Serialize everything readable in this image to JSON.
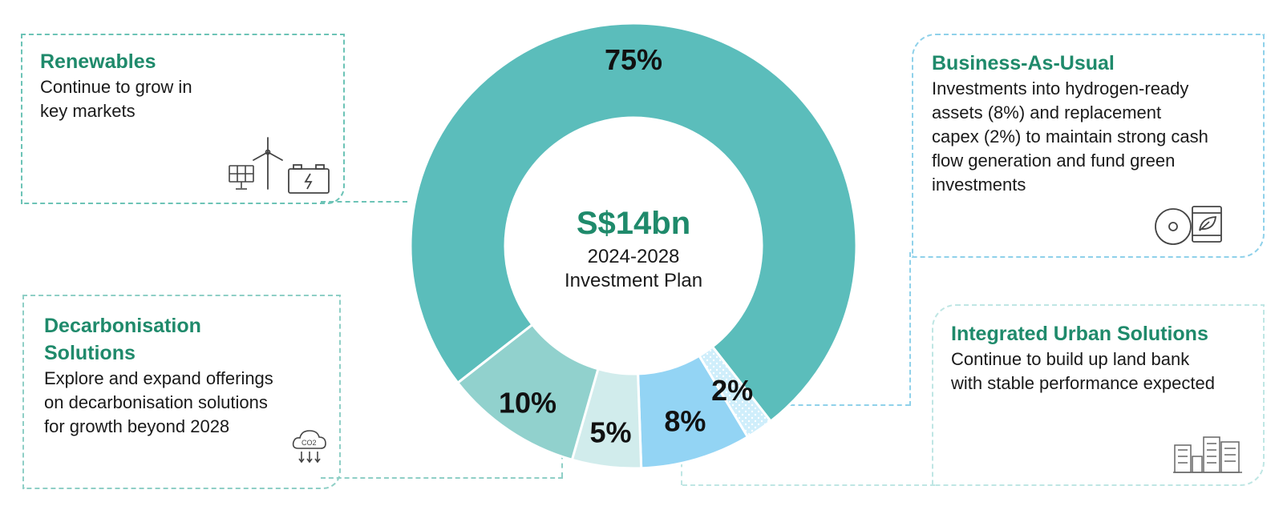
{
  "chart_data": {
    "type": "donut",
    "center": {
      "amount": "S$14bn",
      "period": "2024-2028",
      "label": "Investment Plan"
    },
    "slices": [
      {
        "label": "75%",
        "value": 75,
        "color": "#5bbdbb"
      },
      {
        "label": "2%",
        "value": 2,
        "color": "#cfeefb",
        "pattern": "dotted"
      },
      {
        "label": "8%",
        "value": 8,
        "color": "#93d4f4"
      },
      {
        "label": "5%",
        "value": 5,
        "color": "#d1ecec"
      },
      {
        "label": "10%",
        "value": 10,
        "color": "#91d1cd"
      }
    ]
  },
  "segments": {
    "renewables": {
      "title": "Renewables",
      "text": [
        "Continue to grow in",
        "key markets"
      ]
    },
    "decarbonisation": {
      "title": [
        "Decarbonisation",
        "Solutions"
      ],
      "text": [
        "Explore and expand offerings",
        "on decarbonisation solutions",
        "for growth beyond 2028"
      ]
    },
    "business_as_usual": {
      "title": "Business-As-Usual",
      "text": [
        "Investments into hydrogen-ready",
        "assets (8%) and replacement",
        "capex (2%) to maintain strong cash",
        "flow generation and fund green",
        "investments"
      ]
    },
    "integrated_urban": {
      "title": "Integrated Urban Solutions",
      "text": [
        "Continue to build up land bank",
        "with stable performance expected"
      ]
    }
  },
  "icons": {
    "renewables": [
      "solar-panel-icon",
      "wind-turbine-icon",
      "battery-icon"
    ],
    "decarbonisation": [
      "co2-cloud-icon"
    ],
    "business_as_usual": [
      "turbine-disc-icon",
      "green-fuel-barrel-icon"
    ],
    "integrated_urban": [
      "city-buildings-icon"
    ]
  },
  "colors": {
    "title_green": "#1f8a6b",
    "renewables_border": "#6cc3b6",
    "decarb_border": "#8fcfc6",
    "bau_border": "#8fd1ea",
    "ius_border": "#bfe6e4"
  }
}
